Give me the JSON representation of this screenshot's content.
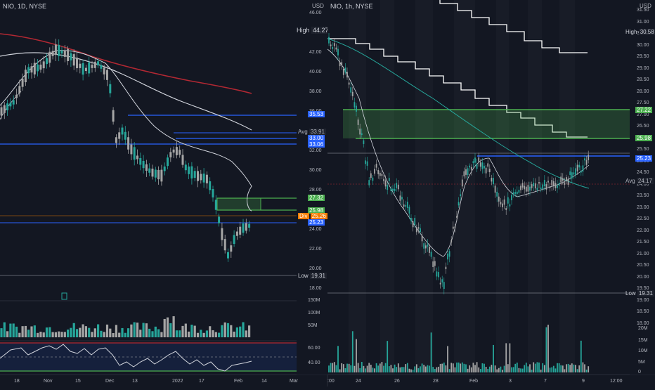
{
  "left_chart": {
    "symbol_label": "NIO, 1D, NYSE",
    "currency": "USD",
    "price_ticks": [
      "46.00",
      "44.00",
      "42.00",
      "40.00",
      "38.00",
      "36.00",
      "34.00",
      "32.00",
      "30.00",
      "28.00",
      "26.00",
      "24.00",
      "22.00",
      "20.00",
      "18.00"
    ],
    "time_ticks": [
      "18",
      "Nov",
      "15",
      "Dec",
      "13",
      "2022",
      "17",
      "Feb",
      "14",
      "Mar"
    ],
    "labels": {
      "high_label": "High",
      "high_value": "44.27",
      "low_label": "Low",
      "low_value": "19.31",
      "avg_label": "Avg",
      "avg_value": "33.91",
      "div_label": "Div",
      "v1": "35.53",
      "v2": "33.00",
      "v3": "33.06",
      "v4": "27.32",
      "v5": "25.98",
      "v6": "25.26",
      "v7": "25.23"
    },
    "volume_ticks": [
      "150M",
      "100M",
      "50M"
    ],
    "rsi_ticks": [
      "60.00",
      "40.00"
    ],
    "colors": {
      "up": "#26a69a",
      "down": "#a5a5a5",
      "ma_red": "#b22833",
      "ma_white": "#d1d4dc",
      "line_blue": "#2962ff",
      "zone_green": "#4caf50"
    }
  },
  "right_chart": {
    "symbol_label": "NIO, 1h, NYSE",
    "currency": "USD",
    "price_ticks": [
      "31.50",
      "31.00",
      "30.50",
      "30.00",
      "29.50",
      "29.00",
      "28.50",
      "28.00",
      "27.50",
      "27.00",
      "26.50",
      "26.00",
      "25.50",
      "25.00",
      "24.50",
      "24.00",
      "23.50",
      "23.00",
      "22.50",
      "22.00",
      "21.50",
      "21.00",
      "20.50",
      "20.00",
      "19.50",
      "19.00",
      "18.50",
      "18.00"
    ],
    "time_ticks": [
      ":00",
      "24",
      "26",
      "28",
      "Feb",
      "3",
      "7",
      "9",
      "12:00"
    ],
    "labels": {
      "high_label": "High",
      "high_value": "30.58",
      "low_label": "Low",
      "low_value": "19.31",
      "avg_label": "Avg",
      "avg_value": "24.17",
      "v1": "27.22",
      "v2": "25.98",
      "v3": "25.23"
    },
    "volume_ticks": [
      "20M",
      "15M",
      "10M",
      "5M",
      "0"
    ]
  }
}
